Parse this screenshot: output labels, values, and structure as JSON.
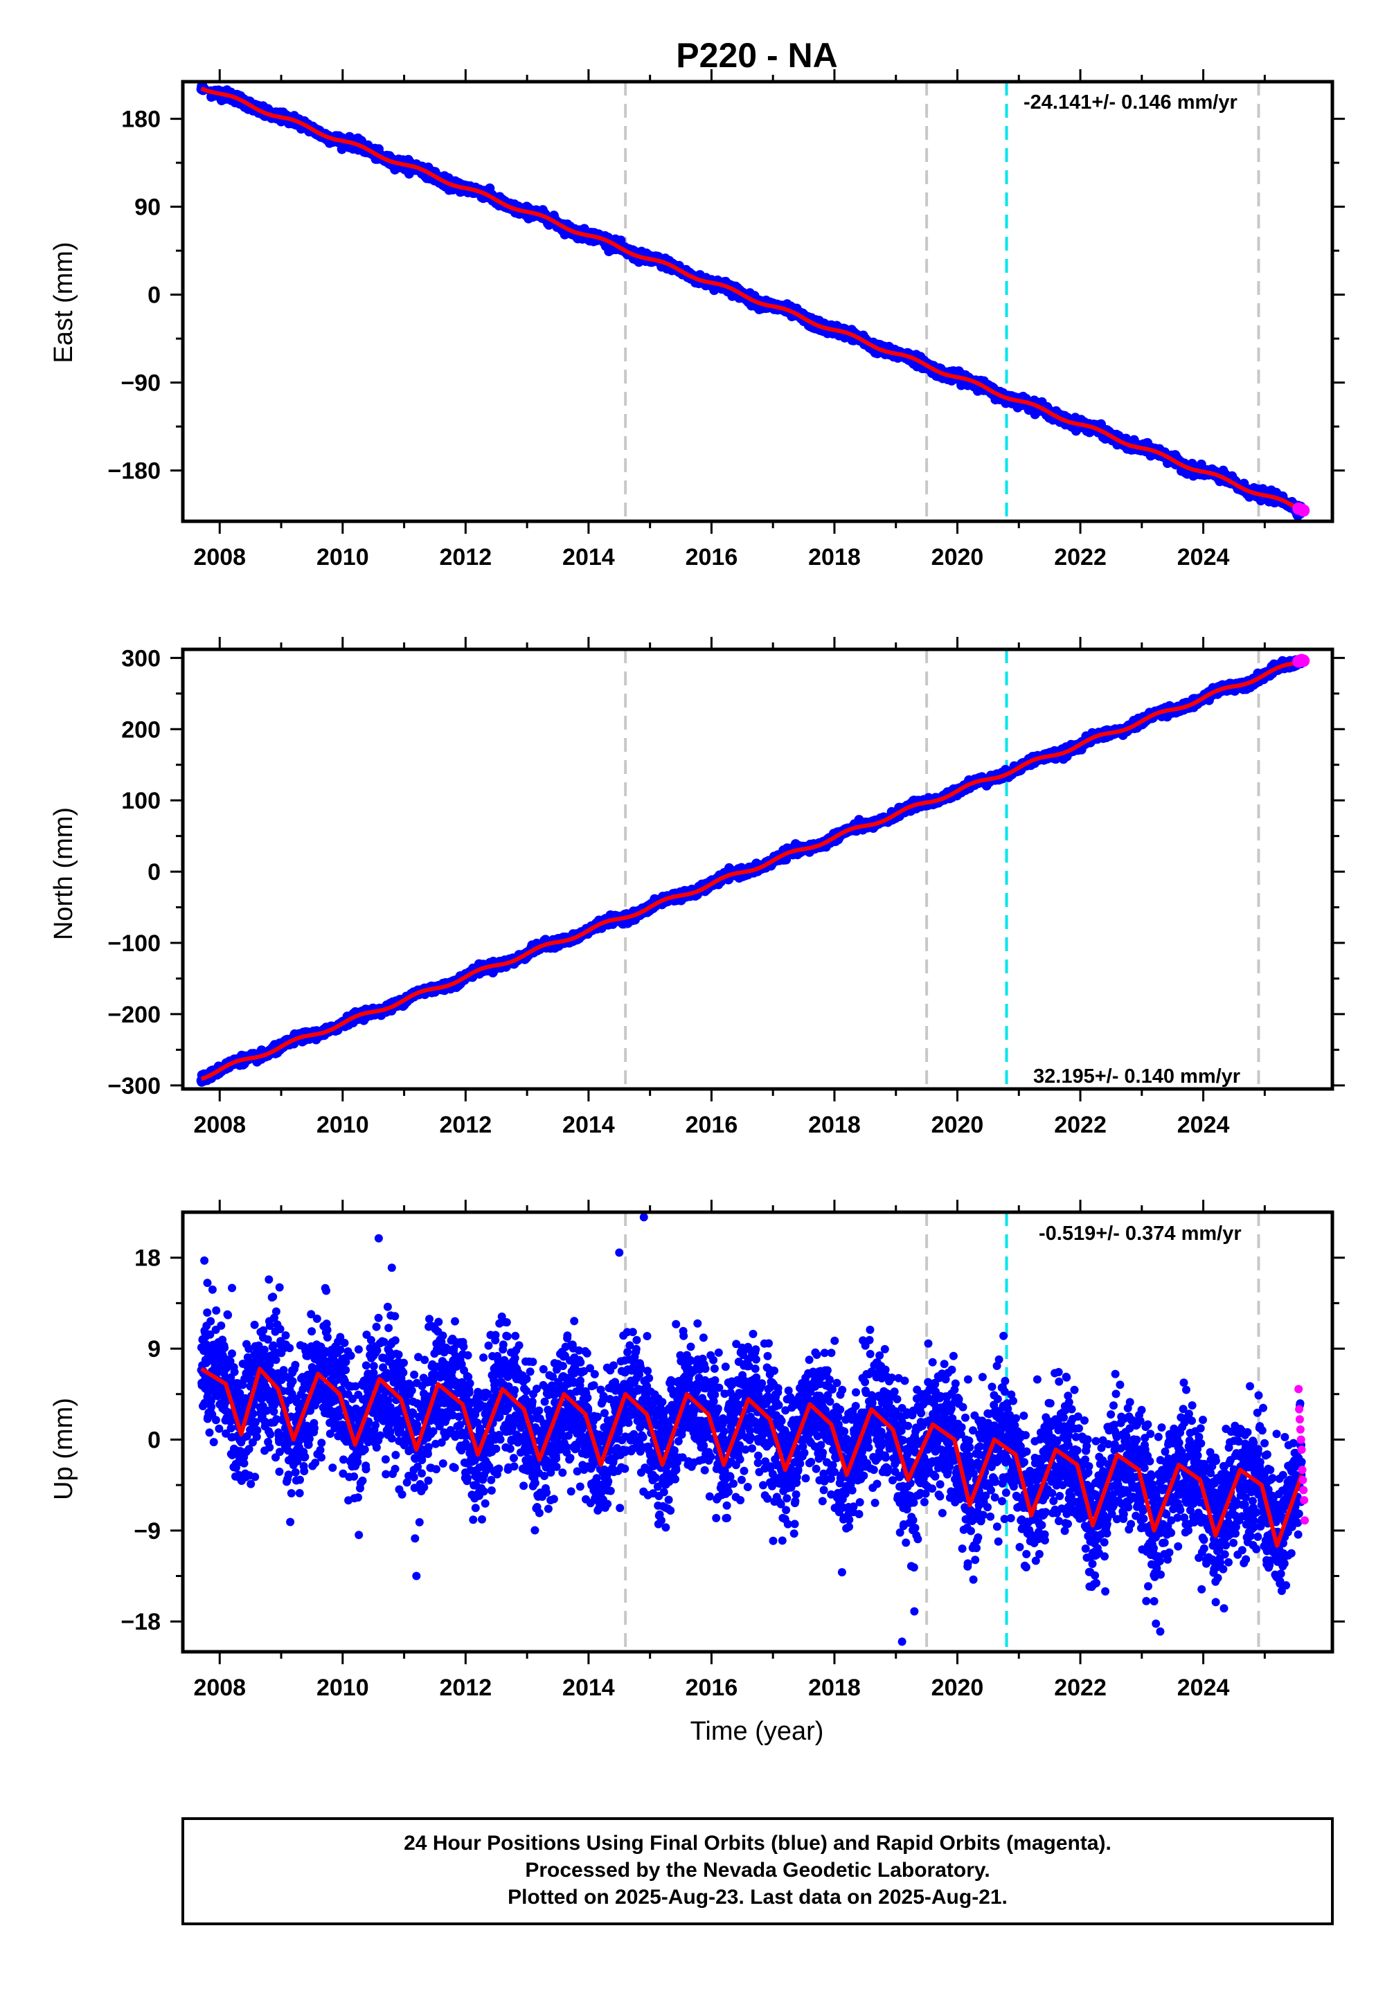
{
  "title": "P220 - NA",
  "colors": {
    "final_orbits": "#0000ff",
    "rapid_orbits": "#ff00ff",
    "model_fit": "#ff0000",
    "equipment_change": "#c8c8c8",
    "event": "#00e5ee",
    "frame": "#000000"
  },
  "caption": {
    "line1": "24 Hour Positions Using Final Orbits (blue) and Rapid Orbits (magenta).",
    "line2": "Processed by the Nevada Geodetic Laboratory.",
    "line3": "Plotted on 2025-Aug-23. Last data on 2025-Aug-21."
  },
  "chart_data": [
    {
      "type": "scatter",
      "component": "east",
      "ylabel": "East (mm)",
      "xlabel": "",
      "rate_label": "-24.141+/- 0.146 mm/yr",
      "rate_position": "top-right",
      "xlim": [
        2007.4,
        2026.1
      ],
      "ylim": [
        -232,
        218
      ],
      "x_ticks": [
        2008,
        2010,
        2012,
        2014,
        2016,
        2018,
        2020,
        2022,
        2024
      ],
      "y_ticks": [
        -180,
        -90,
        0,
        90,
        180
      ],
      "y_tick_labels": [
        "−180",
        "−90",
        "0",
        "90",
        "180"
      ],
      "grid": false,
      "series": [
        {
          "name": "Final Orbits",
          "color": "#0000ff",
          "trend": {
            "x": [
              2007.7,
              2025.6
            ],
            "y": [
              213,
              -220
            ]
          },
          "scatter_sd": 2.5,
          "seasonal_amp": 2
        },
        {
          "name": "Rapid Orbits",
          "color": "#ff00ff",
          "x": [
            2025.55,
            2025.6,
            2025.63
          ],
          "y": [
            -219,
            -220,
            -221
          ]
        }
      ],
      "fit_line": {
        "color": "#ff0000",
        "from_trend": true
      },
      "equipment_changes": [
        2014.6,
        2019.5,
        2024.9
      ],
      "events": [
        2020.8
      ]
    },
    {
      "type": "scatter",
      "component": "north",
      "ylabel": "North (mm)",
      "xlabel": "",
      "rate_label": "32.195+/- 0.140 mm/yr",
      "rate_position": "bottom-right",
      "xlim": [
        2007.4,
        2026.1
      ],
      "ylim": [
        -305,
        312
      ],
      "x_ticks": [
        2008,
        2010,
        2012,
        2014,
        2016,
        2018,
        2020,
        2022,
        2024
      ],
      "y_ticks": [
        -300,
        -200,
        -100,
        0,
        100,
        200,
        300
      ],
      "y_tick_labels": [
        "−300",
        "−200",
        "−100",
        "0",
        "100",
        "200",
        "300"
      ],
      "grid": false,
      "series": [
        {
          "name": "Final Orbits",
          "color": "#0000ff",
          "trend": {
            "x": [
              2007.7,
              2025.6
            ],
            "y": [
              -288,
              296
            ]
          },
          "scatter_sd": 2.8,
          "seasonal_amp": 3
        },
        {
          "name": "Rapid Orbits",
          "color": "#ff00ff",
          "x": [
            2025.55,
            2025.6,
            2025.63
          ],
          "y": [
            295,
            297,
            296
          ]
        }
      ],
      "fit_line": {
        "color": "#ff0000",
        "from_trend": true
      },
      "equipment_changes": [
        2014.6,
        2019.5,
        2024.9
      ],
      "events": [
        2020.8
      ]
    },
    {
      "type": "scatter",
      "component": "up",
      "ylabel": "Up (mm)",
      "xlabel": "Time (year)",
      "rate_label": "-0.519+/- 0.374 mm/yr",
      "rate_position": "top-right",
      "xlim": [
        2007.4,
        2026.1
      ],
      "ylim": [
        -21,
        22.5
      ],
      "x_ticks": [
        2008,
        2010,
        2012,
        2014,
        2016,
        2018,
        2020,
        2022,
        2024
      ],
      "y_ticks": [
        -18,
        -9,
        0,
        9,
        18
      ],
      "y_tick_labels": [
        "−18",
        "−9",
        "0",
        "9",
        "18"
      ],
      "grid": false,
      "series": [
        {
          "name": "Final Orbits",
          "color": "#0000ff",
          "trend": {
            "x": [
              2007.7,
              2025.6
            ],
            "y": [
              2.5,
              -6.8
            ]
          },
          "scatter_sd": 3.3,
          "seasonal_amp": 4.2,
          "outliers": {
            "x": [
              2007.8,
              2014.5,
              2014.9,
              2019.1,
              2008.2,
              2010.8,
              2011.2,
              2019.3,
              2023.3
            ],
            "y": [
              15.5,
              18.5,
              22,
              -20,
              15,
              17,
              -13.5,
              -17,
              -19
            ]
          }
        },
        {
          "name": "Rapid Orbits",
          "color": "#ff00ff",
          "x": [
            2025.55,
            2025.56,
            2025.57,
            2025.58,
            2025.59,
            2025.6,
            2025.61,
            2025.62,
            2025.63,
            2025.64,
            2025.65
          ],
          "y": [
            5,
            3,
            2,
            1,
            0,
            -1,
            -3,
            -4,
            -5,
            -6,
            -8
          ]
        }
      ],
      "fit_line": {
        "color": "#ff0000",
        "x": [
          2007.7,
          2008.1,
          2008.35,
          2008.65,
          2008.95,
          2009.2,
          2009.6,
          2009.95,
          2010.2,
          2010.6,
          2010.95,
          2011.2,
          2011.55,
          2011.95,
          2012.2,
          2012.6,
          2012.95,
          2013.2,
          2013.6,
          2013.95,
          2014.2,
          2014.6,
          2014.95,
          2015.2,
          2015.6,
          2015.95,
          2016.2,
          2016.6,
          2016.95,
          2017.2,
          2017.6,
          2017.95,
          2018.2,
          2018.6,
          2018.95,
          2019.2,
          2019.6,
          2019.95,
          2020.2,
          2020.6,
          2020.95,
          2021.2,
          2021.6,
          2021.95,
          2022.2,
          2022.6,
          2022.95,
          2023.2,
          2023.6,
          2023.95,
          2024.2,
          2024.6,
          2024.95,
          2025.2,
          2025.6
        ],
        "y": [
          7,
          5.5,
          0.5,
          7,
          5,
          0,
          6.5,
          4.5,
          -0.5,
          6,
          4,
          -1,
          5.5,
          3.5,
          -1.5,
          5,
          3,
          -2,
          4.5,
          2.5,
          -2.5,
          4.5,
          2.5,
          -2.5,
          4.5,
          2.5,
          -2.5,
          4,
          2,
          -3,
          3.5,
          1.5,
          -3.5,
          3,
          1,
          -4,
          1.5,
          0,
          -6.5,
          0,
          -1.5,
          -7.5,
          -1,
          -2.5,
          -8.5,
          -1.5,
          -3,
          -9,
          -2.5,
          -4,
          -9.5,
          -3,
          -4.5,
          -10.5,
          -3.5
        ]
      },
      "equipment_changes": [
        2014.6,
        2019.5,
        2024.9
      ],
      "events": [
        2020.8
      ]
    }
  ]
}
